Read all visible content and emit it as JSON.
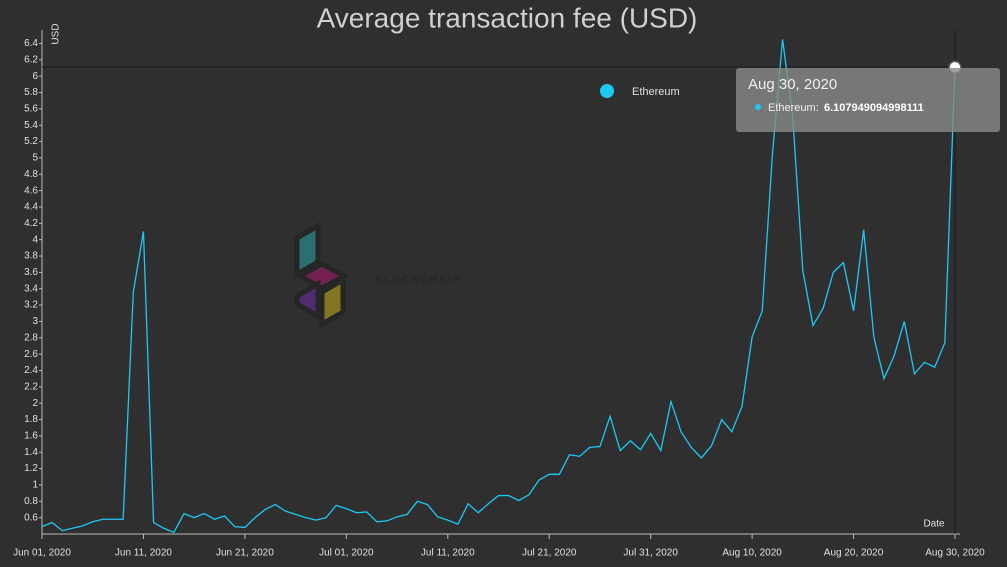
{
  "chart_data": {
    "type": "line",
    "title": "Average transaction fee (USD)",
    "y_label": "USD",
    "x_label": "Date",
    "watermark": "BLOCKCHAIR",
    "x": [
      "2020-06-01",
      "2020-06-02",
      "2020-06-03",
      "2020-06-04",
      "2020-06-05",
      "2020-06-06",
      "2020-06-07",
      "2020-06-08",
      "2020-06-09",
      "2020-06-10",
      "2020-06-11",
      "2020-06-12",
      "2020-06-13",
      "2020-06-14",
      "2020-06-15",
      "2020-06-16",
      "2020-06-17",
      "2020-06-18",
      "2020-06-19",
      "2020-06-20",
      "2020-06-21",
      "2020-06-22",
      "2020-06-23",
      "2020-06-24",
      "2020-06-25",
      "2020-06-26",
      "2020-06-27",
      "2020-06-28",
      "2020-06-29",
      "2020-06-30",
      "2020-07-01",
      "2020-07-02",
      "2020-07-03",
      "2020-07-04",
      "2020-07-05",
      "2020-07-06",
      "2020-07-07",
      "2020-07-08",
      "2020-07-09",
      "2020-07-10",
      "2020-07-11",
      "2020-07-12",
      "2020-07-13",
      "2020-07-14",
      "2020-07-15",
      "2020-07-16",
      "2020-07-17",
      "2020-07-18",
      "2020-07-19",
      "2020-07-20",
      "2020-07-21",
      "2020-07-22",
      "2020-07-23",
      "2020-07-24",
      "2020-07-25",
      "2020-07-26",
      "2020-07-27",
      "2020-07-28",
      "2020-07-29",
      "2020-07-30",
      "2020-07-31",
      "2020-08-01",
      "2020-08-02",
      "2020-08-03",
      "2020-08-04",
      "2020-08-05",
      "2020-08-06",
      "2020-08-07",
      "2020-08-08",
      "2020-08-09",
      "2020-08-10",
      "2020-08-11",
      "2020-08-12",
      "2020-08-13",
      "2020-08-14",
      "2020-08-15",
      "2020-08-16",
      "2020-08-17",
      "2020-08-18",
      "2020-08-19",
      "2020-08-20",
      "2020-08-21",
      "2020-08-22",
      "2020-08-23",
      "2020-08-24",
      "2020-08-25",
      "2020-08-26",
      "2020-08-27",
      "2020-08-28",
      "2020-08-29",
      "2020-08-30"
    ],
    "series": [
      {
        "name": "Ethereum",
        "color": "#1ec8f5",
        "values": [
          0.49,
          0.54,
          0.44,
          0.47,
          0.5,
          0.55,
          0.58,
          0.58,
          0.58,
          3.36,
          4.1,
          0.54,
          0.47,
          0.42,
          0.65,
          0.6,
          0.65,
          0.58,
          0.62,
          0.49,
          0.48,
          0.6,
          0.7,
          0.76,
          0.68,
          0.64,
          0.6,
          0.57,
          0.6,
          0.75,
          0.71,
          0.66,
          0.67,
          0.55,
          0.56,
          0.61,
          0.64,
          0.8,
          0.76,
          0.61,
          0.57,
          0.52,
          0.77,
          0.66,
          0.77,
          0.87,
          0.87,
          0.81,
          0.88,
          1.06,
          1.13,
          1.13,
          1.37,
          1.35,
          1.46,
          1.47,
          1.84,
          1.42,
          1.54,
          1.43,
          1.63,
          1.42,
          2.02,
          1.65,
          1.46,
          1.33,
          1.48,
          1.8,
          1.65,
          1.96,
          2.81,
          3.13,
          5.04,
          6.45,
          5.51,
          3.62,
          2.95,
          3.16,
          3.6,
          3.72,
          3.13,
          4.12,
          2.81,
          2.3,
          2.58,
          3.0,
          2.36,
          2.5,
          2.44,
          2.74,
          6.107949094998111
        ]
      }
    ],
    "xlim": [
      "2020-06-01",
      "2020-08-30"
    ],
    "xticks": [
      {
        "value": "2020-06-01",
        "label": "Jun 01, 2020"
      },
      {
        "value": "2020-06-11",
        "label": "Jun 11, 2020"
      },
      {
        "value": "2020-06-21",
        "label": "Jun 21, 2020"
      },
      {
        "value": "2020-07-01",
        "label": "Jul 01, 2020"
      },
      {
        "value": "2020-07-11",
        "label": "Jul 11, 2020"
      },
      {
        "value": "2020-07-21",
        "label": "Jul 21, 2020"
      },
      {
        "value": "2020-07-31",
        "label": "Jul 31, 2020"
      },
      {
        "value": "2020-08-10",
        "label": "Aug 10, 2020"
      },
      {
        "value": "2020-08-20",
        "label": "Aug 20, 2020"
      },
      {
        "value": "2020-08-30",
        "label": "Aug 30, 2020"
      }
    ],
    "ylim": [
      0.4,
      6.55
    ],
    "yticks": [
      0.6,
      0.8,
      1,
      1.2,
      1.4,
      1.6,
      1.8,
      2,
      2.2,
      2.4,
      2.6,
      2.8,
      3,
      3.2,
      3.4,
      3.6,
      3.8,
      4,
      4.2,
      4.4,
      4.6,
      4.8,
      5,
      5.2,
      5.4,
      5.6,
      5.8,
      6,
      6.2,
      6.4
    ],
    "tooltip": {
      "title": "Aug 30, 2020",
      "label": "Ethereum:"
    }
  }
}
